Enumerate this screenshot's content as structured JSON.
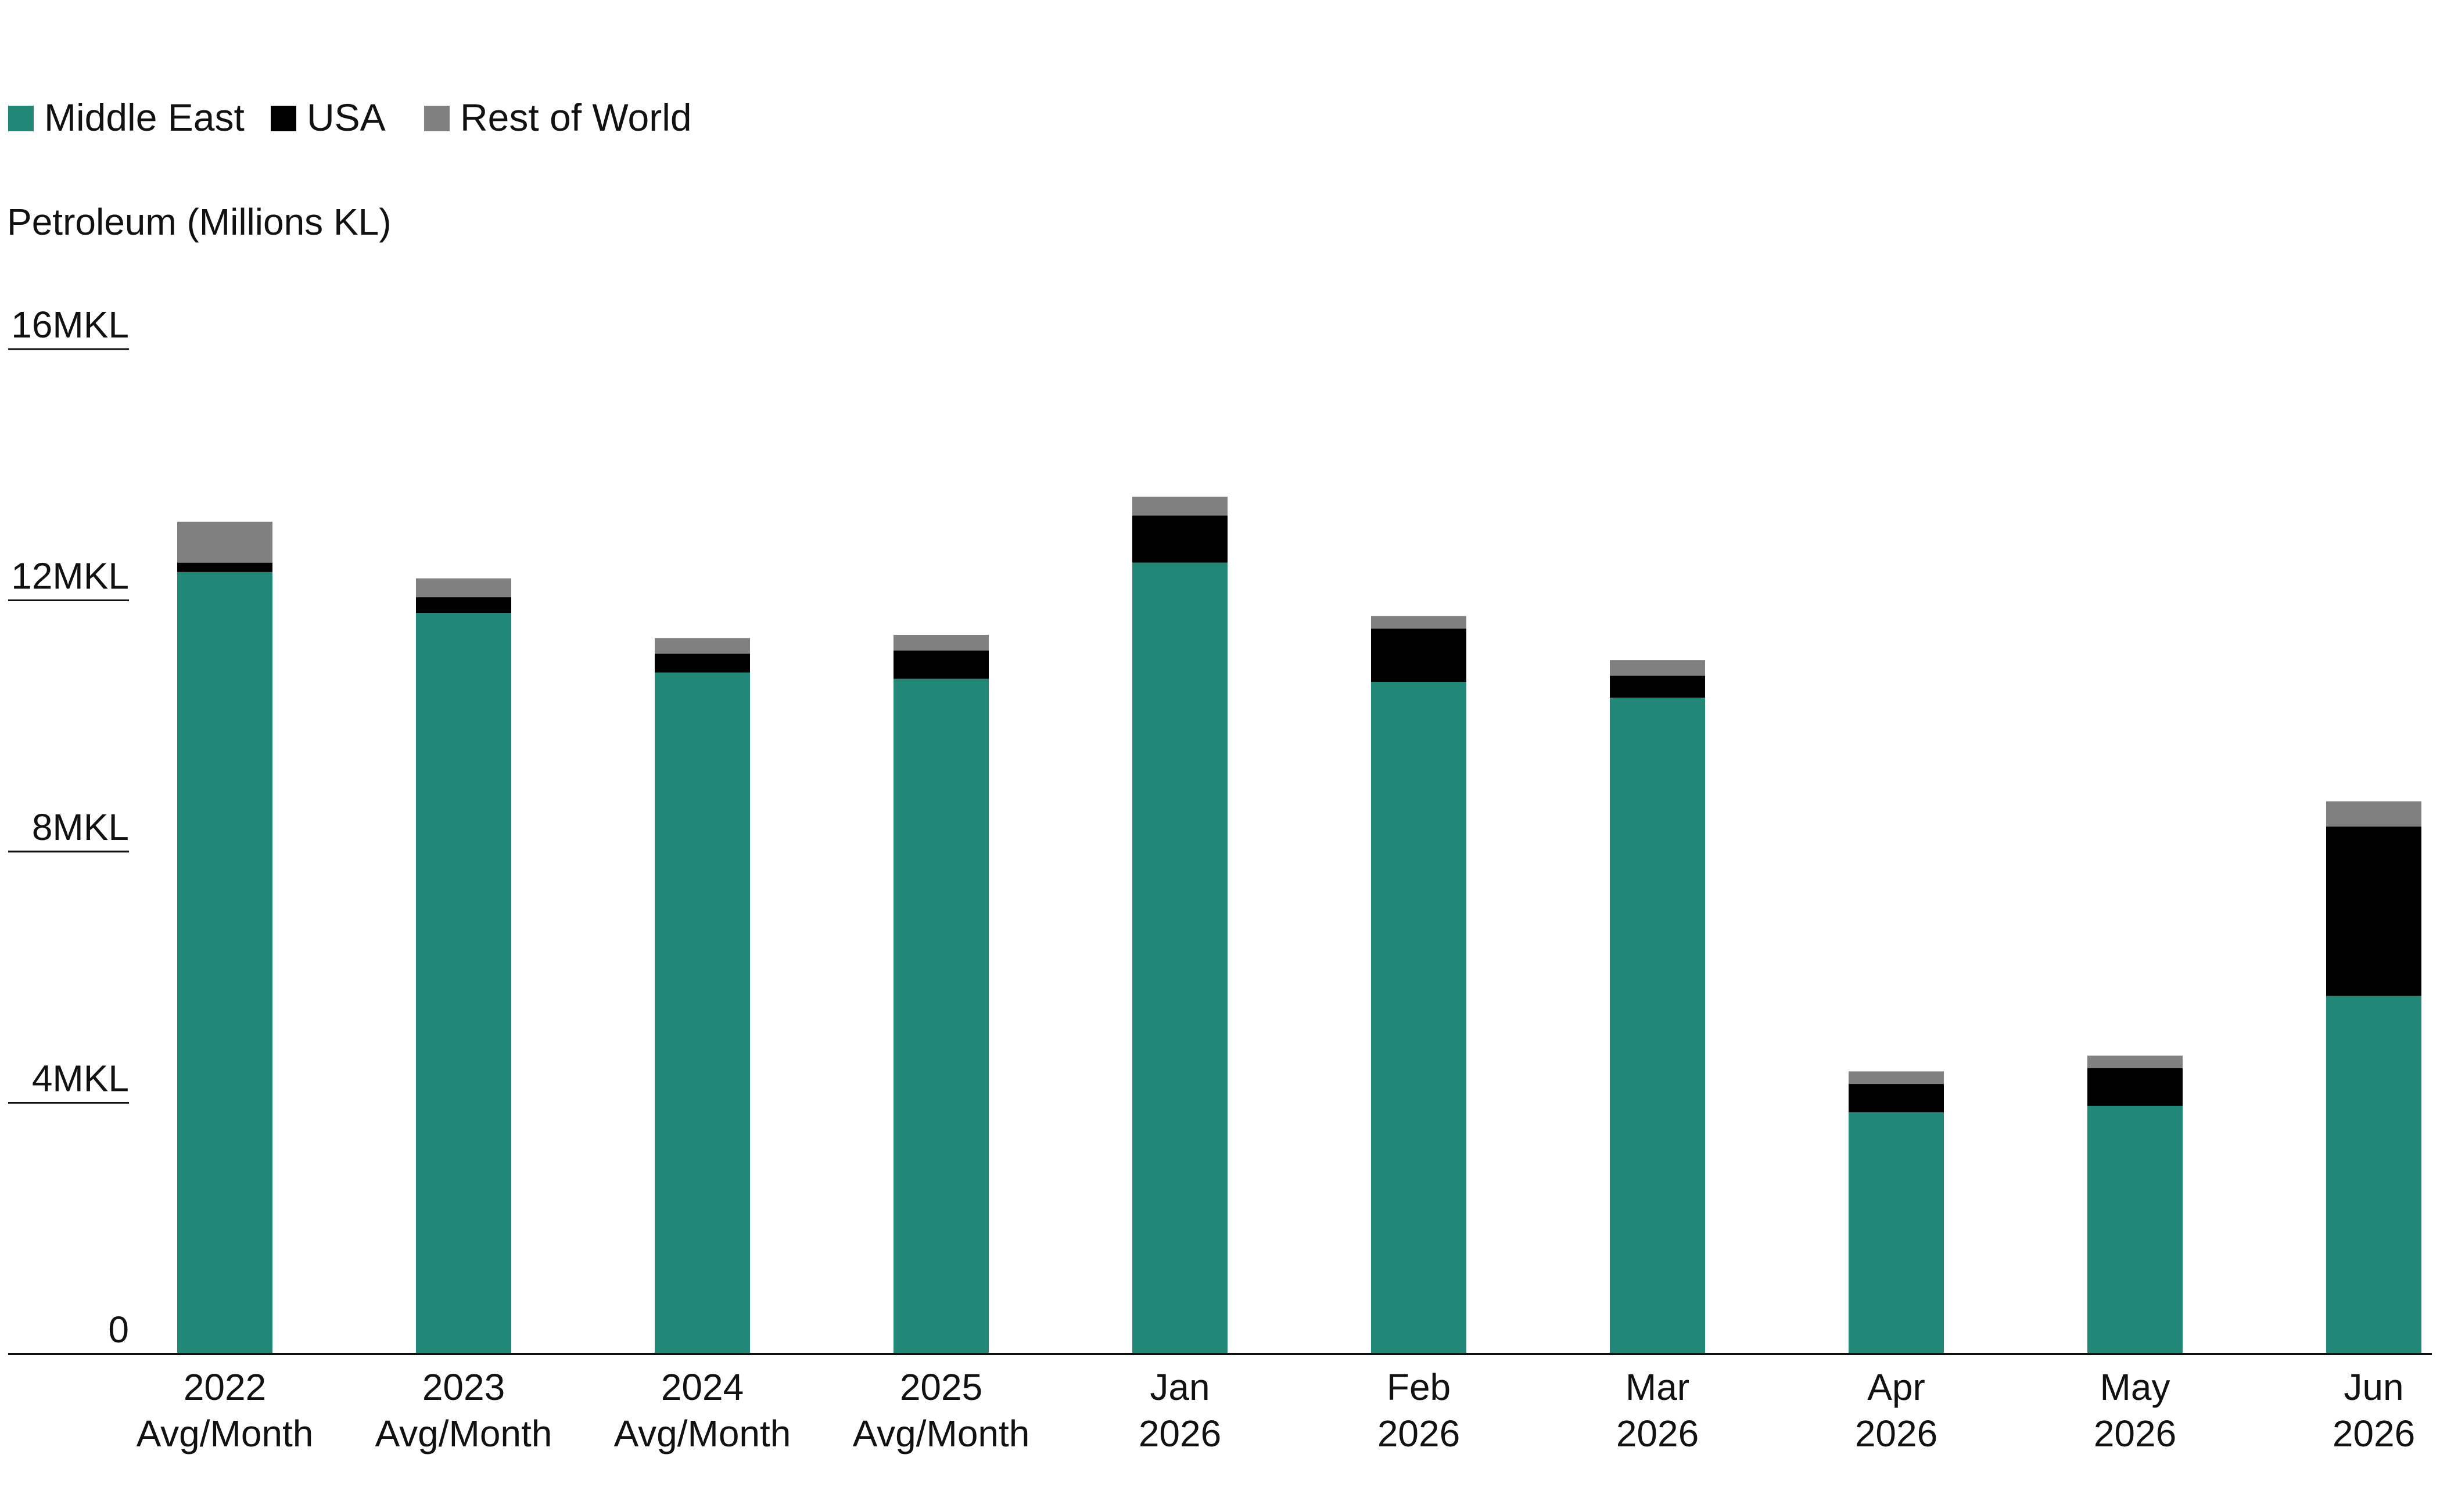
{
  "chart_data": {
    "type": "bar",
    "stacked": true,
    "ylabel": "Petroleum (Millions KL)",
    "ylim": [
      0,
      16
    ],
    "yticks": [
      0,
      4,
      8,
      12,
      16
    ],
    "ytick_labels": [
      "0",
      "4MKL",
      "8MKL",
      "12MKL",
      "16MKL"
    ],
    "grid": false,
    "legend_position": "top-left",
    "categories": [
      [
        "2022",
        "Avg/Month"
      ],
      [
        "2023",
        "Avg/Month"
      ],
      [
        "2024",
        "Avg/Month"
      ],
      [
        "2025",
        "Avg/Month"
      ],
      [
        "Jan",
        "2026"
      ],
      [
        "Feb",
        "2026"
      ],
      [
        "Mar",
        "2026"
      ],
      [
        "Apr",
        "2026"
      ],
      [
        "May",
        "2026"
      ],
      [
        "Jun",
        "2026"
      ]
    ],
    "series": [
      {
        "name": "Middle East",
        "color": "#218777",
        "values": [
          12.45,
          11.8,
          10.85,
          10.75,
          12.6,
          10.7,
          10.45,
          3.85,
          3.95,
          5.7
        ]
      },
      {
        "name": "USA",
        "color": "#000000",
        "values": [
          0.15,
          0.25,
          0.3,
          0.45,
          0.75,
          0.85,
          0.35,
          0.45,
          0.6,
          2.7
        ]
      },
      {
        "name": "Rest of World",
        "color": "#808080",
        "values": [
          0.65,
          0.3,
          0.25,
          0.25,
          0.3,
          0.2,
          0.25,
          0.2,
          0.2,
          0.4
        ]
      }
    ]
  }
}
